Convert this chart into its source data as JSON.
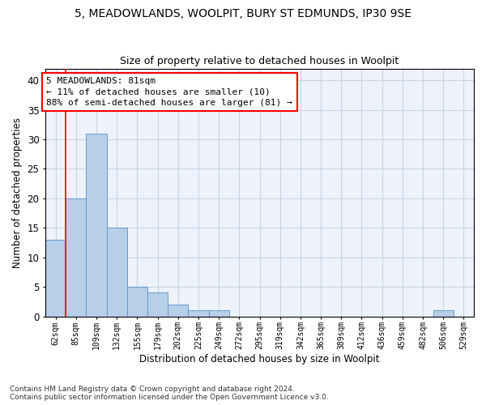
{
  "title_line1": "5, MEADOWLANDS, WOOLPIT, BURY ST EDMUNDS, IP30 9SE",
  "title_line2": "Size of property relative to detached houses in Woolpit",
  "xlabel": "Distribution of detached houses by size in Woolpit",
  "ylabel": "Number of detached properties",
  "categories": [
    "62sqm",
    "85sqm",
    "109sqm",
    "132sqm",
    "155sqm",
    "179sqm",
    "202sqm",
    "225sqm",
    "249sqm",
    "272sqm",
    "295sqm",
    "319sqm",
    "342sqm",
    "365sqm",
    "389sqm",
    "412sqm",
    "436sqm",
    "459sqm",
    "482sqm",
    "506sqm",
    "529sqm"
  ],
  "values": [
    13,
    20,
    31,
    15,
    5,
    4,
    2,
    1,
    1,
    0,
    0,
    0,
    0,
    0,
    0,
    0,
    0,
    0,
    0,
    1,
    0
  ],
  "bar_color": "#b8cfe8",
  "bar_edge_color": "#6699cc",
  "ylim": [
    0,
    42
  ],
  "yticks": [
    0,
    5,
    10,
    15,
    20,
    25,
    30,
    35,
    40
  ],
  "grid_color": "#c8d4e8",
  "annotation_text": "5 MEADOWLANDS: 81sqm\n← 11% of detached houses are smaller (10)\n88% of semi-detached houses are larger (81) →",
  "footnote": "Contains HM Land Registry data © Crown copyright and database right 2024.\nContains public sector information licensed under the Open Government Licence v3.0.",
  "bg_color": "#eef2fa"
}
